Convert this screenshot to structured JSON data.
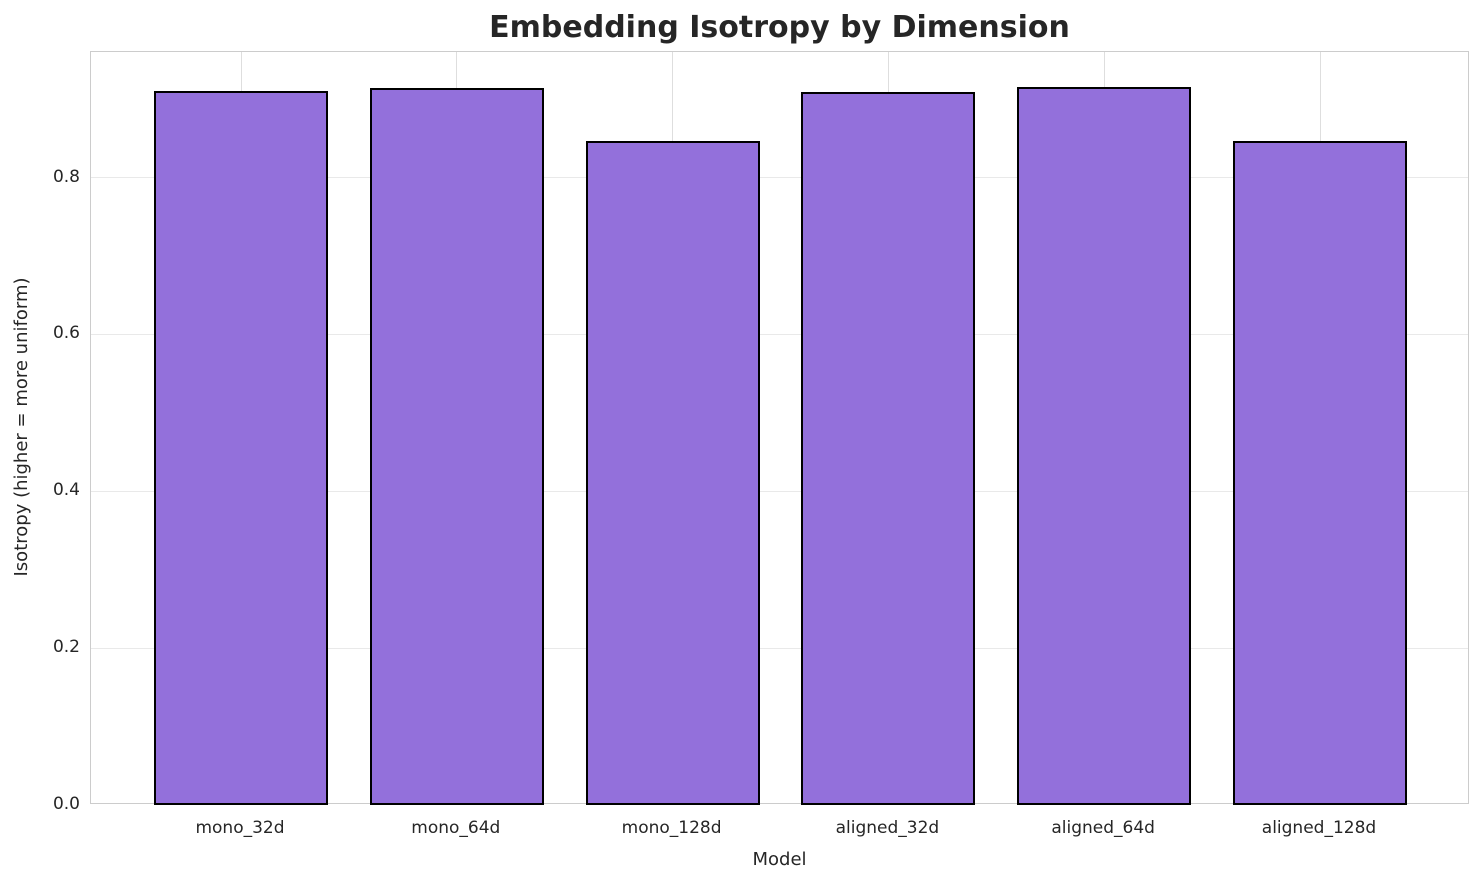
{
  "chart_data": {
    "type": "bar",
    "title": "Embedding Isotropy by Dimension",
    "xlabel": "Model",
    "ylabel": "Isotropy (higher = more uniform)",
    "categories": [
      "mono_32d",
      "mono_64d",
      "mono_128d",
      "aligned_32d",
      "aligned_64d",
      "aligned_128d"
    ],
    "values": [
      0.91,
      0.914,
      0.846,
      0.909,
      0.915,
      0.846
    ],
    "ylim": [
      0,
      0.96
    ],
    "yticks": [
      0.0,
      0.2,
      0.4,
      0.6,
      0.8
    ],
    "ytick_labels": [
      "0.0",
      "0.2",
      "0.4",
      "0.6",
      "0.8"
    ],
    "grid": true,
    "legend": "none",
    "colors": {
      "bar_fill": "#9370DB",
      "bar_edge": "#000000",
      "grid_h": "#e9e9e9",
      "grid_v": "#dedede",
      "spine": "#cccccc",
      "text": "#262626",
      "background": "#ffffff"
    }
  }
}
